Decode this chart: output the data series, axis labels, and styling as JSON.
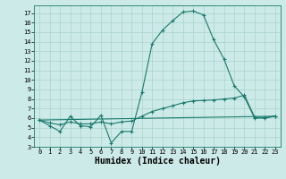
{
  "background_color": "#cceae7",
  "grid_color": "#aad4d0",
  "line_color": "#1a7a6e",
  "xlabel": "Humidex (Indice chaleur)",
  "xlim": [
    -0.5,
    23.5
  ],
  "ylim": [
    3,
    17.8
  ],
  "yticks": [
    3,
    4,
    5,
    6,
    7,
    8,
    9,
    10,
    11,
    12,
    13,
    14,
    15,
    16,
    17
  ],
  "xticks": [
    0,
    1,
    2,
    3,
    4,
    5,
    6,
    7,
    8,
    9,
    10,
    11,
    12,
    13,
    14,
    15,
    16,
    17,
    18,
    19,
    20,
    21,
    22,
    23
  ],
  "main_line": {
    "x": [
      0,
      1,
      2,
      3,
      4,
      5,
      6,
      7,
      8,
      9,
      10,
      11,
      12,
      13,
      14,
      15,
      16,
      17,
      18,
      19,
      20,
      21,
      22,
      23
    ],
    "y": [
      5.8,
      5.2,
      4.6,
      6.2,
      5.2,
      5.1,
      6.3,
      3.4,
      4.6,
      4.6,
      8.7,
      13.8,
      15.2,
      16.2,
      17.1,
      17.2,
      16.8,
      14.2,
      12.2,
      9.4,
      8.2,
      6.0,
      6.0,
      6.2
    ]
  },
  "straight_line": {
    "x": [
      0,
      23
    ],
    "y": [
      5.8,
      6.2
    ]
  },
  "gentle_line": {
    "x": [
      0,
      1,
      2,
      3,
      4,
      5,
      6,
      7,
      8,
      9,
      10,
      11,
      12,
      13,
      14,
      15,
      16,
      17,
      18,
      19,
      20,
      21,
      22,
      23
    ],
    "y": [
      5.8,
      5.5,
      5.3,
      5.6,
      5.4,
      5.4,
      5.6,
      5.4,
      5.6,
      5.7,
      6.2,
      6.7,
      7.0,
      7.3,
      7.6,
      7.8,
      7.85,
      7.9,
      8.0,
      8.1,
      8.4,
      6.1,
      6.05,
      6.2
    ]
  }
}
